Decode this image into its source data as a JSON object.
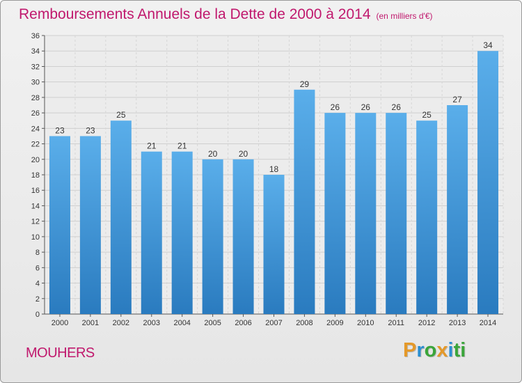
{
  "header": {
    "title": "Remboursements Annuels de la Dette de 2000 à 2014",
    "unit": "(en milliers d'€)"
  },
  "footer": {
    "commune": "MOUHERS",
    "brand": [
      "P",
      "r",
      "o",
      "x",
      "i",
      "ti"
    ]
  },
  "colors": {
    "title": "#c0186d",
    "bar_top": "#5aaeea",
    "bar_bottom": "#2a7bbf"
  },
  "chart_data": {
    "type": "bar",
    "categories": [
      "2000",
      "2001",
      "2002",
      "2003",
      "2004",
      "2005",
      "2006",
      "2007",
      "2008",
      "2009",
      "2010",
      "2011",
      "2012",
      "2013",
      "2014"
    ],
    "values": [
      23,
      23,
      25,
      21,
      21,
      20,
      20,
      18,
      29,
      26,
      26,
      26,
      25,
      27,
      34
    ],
    "ylim": [
      0,
      36
    ],
    "yticks": [
      0,
      2,
      4,
      6,
      8,
      10,
      12,
      14,
      16,
      18,
      20,
      22,
      24,
      26,
      28,
      30,
      32,
      34,
      36
    ],
    "grid": true,
    "data_labels": true
  }
}
